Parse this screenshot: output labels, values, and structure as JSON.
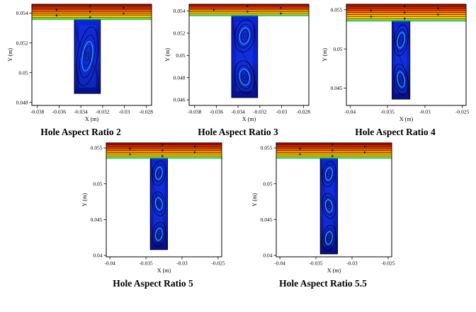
{
  "page": {
    "background": "#ffffff"
  },
  "chart_data": [
    {
      "type": "heatmap",
      "subtype": "streamline-contour CFD plot",
      "title": "Hole Aspect Ratio 2",
      "aspect_ratio": 2,
      "xlabel": "X (m)",
      "ylabel": "Y (m)",
      "xlim": [
        -0.0385,
        -0.0275
      ],
      "ylim": [
        0.0478,
        0.0546
      ],
      "xticks": [
        "-0.038",
        "-0.036",
        "-0.034",
        "-0.032",
        "-0.03",
        "-0.028"
      ],
      "yticks": [
        "0.048",
        "0.05",
        "0.052",
        "0.054"
      ],
      "grid": false,
      "legend": "none",
      "channel": {
        "y_interface": 0.0536,
        "contour_colors_top_to_bottom": [
          "#b40000",
          "#e03800",
          "#ff7d00",
          "#ffb400",
          "#ffe000",
          "#30c030"
        ]
      },
      "hole": {
        "x": [
          -0.0346,
          -0.0322
        ],
        "y": [
          0.0486,
          0.0536
        ],
        "fill": "#0a1cc0",
        "vortices": 1
      },
      "streamline_color": "#000000"
    },
    {
      "type": "heatmap",
      "subtype": "streamline-contour CFD plot",
      "title": "Hole Aspect Ratio 3",
      "aspect_ratio": 3,
      "xlabel": "X (m)",
      "ylabel": "Y (m)",
      "xlim": [
        -0.0385,
        -0.0275
      ],
      "ylim": [
        0.0455,
        0.0546
      ],
      "xticks": [
        "-0.038",
        "-0.036",
        "-0.034",
        "-0.032",
        "-0.03",
        "-0.028"
      ],
      "yticks": [
        "0.046",
        "0.048",
        "0.05",
        "0.052",
        "0.054"
      ],
      "grid": false,
      "legend": "none",
      "channel": {
        "y_interface": 0.0536,
        "contour_colors_top_to_bottom": [
          "#b40000",
          "#e03800",
          "#ff7d00",
          "#ffb400",
          "#ffe000",
          "#30c030"
        ]
      },
      "hole": {
        "x": [
          -0.0346,
          -0.0322
        ],
        "y": [
          0.0462,
          0.0536
        ],
        "fill": "#0a1cc0",
        "vortices": 2
      },
      "streamline_color": "#000000"
    },
    {
      "type": "heatmap",
      "subtype": "streamline-contour CFD plot",
      "title": "Hole Aspect Ratio 4",
      "aspect_ratio": 4,
      "xlabel": "X (m)",
      "ylabel": "Y (m)",
      "xlim": [
        -0.0405,
        -0.0245
      ],
      "ylim": [
        0.0428,
        0.0557
      ],
      "xticks": [
        "-0.04",
        "-0.035",
        "-0.03",
        "-0.025"
      ],
      "yticks": [
        "0.045",
        "0.05",
        "0.055"
      ],
      "grid": false,
      "legend": "none",
      "channel": {
        "y_interface": 0.0536,
        "contour_colors_top_to_bottom": [
          "#b40000",
          "#e03800",
          "#ff7d00",
          "#ffb400",
          "#ffe000",
          "#30c030"
        ]
      },
      "hole": {
        "x": [
          -0.0344,
          -0.032
        ],
        "y": [
          0.0436,
          0.0536
        ],
        "fill": "#0a1cc0",
        "vortices": 2
      },
      "streamline_color": "#000000"
    },
    {
      "type": "heatmap",
      "subtype": "streamline-contour CFD plot",
      "title": "Hole Aspect Ratio 5",
      "aspect_ratio": 5,
      "xlabel": "X (m)",
      "ylabel": "Y (m)",
      "xlim": [
        -0.0405,
        -0.0245
      ],
      "ylim": [
        0.0398,
        0.0557
      ],
      "xticks": [
        "-0.04",
        "-0.035",
        "-0.03",
        "-0.025"
      ],
      "yticks": [
        "0.04",
        "0.045",
        "0.05",
        "0.055"
      ],
      "grid": false,
      "legend": "none",
      "channel": {
        "y_interface": 0.0536,
        "contour_colors_top_to_bottom": [
          "#b40000",
          "#e03800",
          "#ff7d00",
          "#ffb400",
          "#ffe000",
          "#30c030"
        ]
      },
      "hole": {
        "x": [
          -0.0344,
          -0.032
        ],
        "y": [
          0.0408,
          0.0536
        ],
        "fill": "#0a1cc0",
        "vortices": 3
      },
      "streamline_color": "#000000"
    },
    {
      "type": "heatmap",
      "subtype": "streamline-contour CFD plot",
      "title": "Hole Aspect Ratio 5.5",
      "aspect_ratio": 5.5,
      "xlabel": "X (m)",
      "ylabel": "Y (m)",
      "xlim": [
        -0.0405,
        -0.0245
      ],
      "ylim": [
        0.0398,
        0.0557
      ],
      "xticks": [
        "-0.04",
        "-0.035",
        "-0.03",
        "-0.025"
      ],
      "yticks": [
        "0.04",
        "0.045",
        "0.05",
        "0.055"
      ],
      "grid": false,
      "legend": "none",
      "channel": {
        "y_interface": 0.0536,
        "contour_colors_top_to_bottom": [
          "#b40000",
          "#e03800",
          "#ff7d00",
          "#ffb400",
          "#ffe000",
          "#30c030"
        ]
      },
      "hole": {
        "x": [
          -0.0344,
          -0.032
        ],
        "y": [
          0.0402,
          0.0536
        ],
        "fill": "#0a1cc0",
        "vortices": 3
      },
      "streamline_color": "#000000"
    }
  ]
}
